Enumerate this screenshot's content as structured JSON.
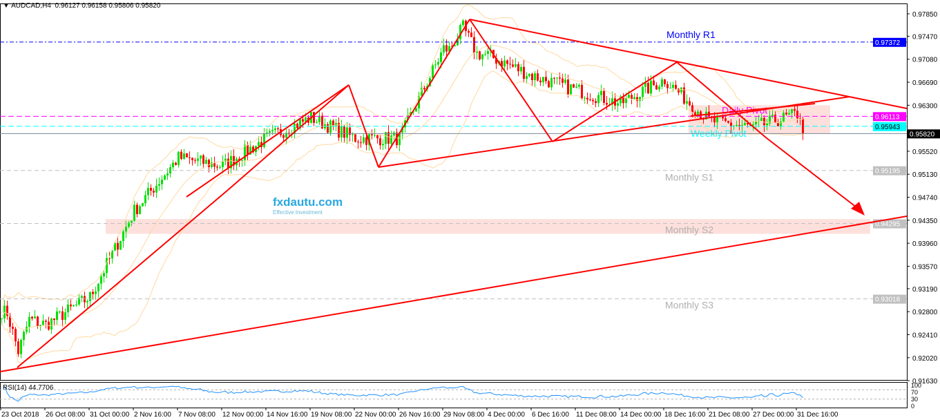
{
  "header": {
    "symbol": "AUDCAD,H4",
    "ohlc": "0.96127 0.96158 0.95806 0.95820"
  },
  "rsi": {
    "label": "RSI(14) 44.7706",
    "levels": [
      70,
      30
    ],
    "axis_labels": [
      "100",
      "70",
      "30",
      "0"
    ]
  },
  "logo": {
    "name": "fxdautu.com",
    "tagline": "Effective Investment"
  },
  "colors": {
    "bull": "#00e000",
    "bear": "#ff0000",
    "trendline": "#ff0000",
    "bands": "#ffd9a0",
    "r1": "#0000ff",
    "daily_pivot": "#ff00ff",
    "weekly_pivot": "#00ffff",
    "support": "#c0c0c0",
    "rsi": "#1e90ff"
  },
  "chart_data": {
    "type": "candlestick",
    "timeframe": "H4",
    "y_ticks": [
      "0.97850",
      "0.97470",
      "0.97080",
      "0.96690",
      "0.96300",
      "0.95520",
      "0.95130",
      "0.94740",
      "0.94350",
      "0.93960",
      "0.93570",
      "0.93190",
      "0.92800",
      "0.92410",
      "0.92020",
      "0.91630"
    ],
    "ylim": [
      0.916,
      0.98
    ],
    "x_ticks": [
      "23 Oct 2018",
      "26 Oct 08:00",
      "31 Oct 00:00",
      "2 Nov 16:00",
      "7 Nov 08:00",
      "12 Nov 00:00",
      "14 Nov 16:00",
      "19 Nov 08:00",
      "22 Nov 00:00",
      "26 Nov 16:00",
      "29 Nov 08:00",
      "4 Dec 00:00",
      "6 Dec 16:00",
      "11 Dec 08:00",
      "14 Dec 00:00",
      "18 Dec 16:00",
      "21 Dec 08:00",
      "27 Dec 00:00",
      "31 Dec 16:00"
    ],
    "approx_close_at_ticks": [
      0.9281,
      0.9258,
      0.9305,
      0.9451,
      0.9541,
      0.9527,
      0.9574,
      0.9609,
      0.9574,
      0.9574,
      0.9726,
      0.9715,
      0.968,
      0.9656,
      0.9633,
      0.9674,
      0.9604,
      0.9592,
      0.9615
    ],
    "last_close": 0.9582,
    "current_price_label": "0.95820",
    "levels": [
      {
        "name": "Monthly R1",
        "price": 0.97372,
        "label": "0.97372"
      },
      {
        "name": "Daily Pivot",
        "price": 0.96113,
        "label": "0.96113"
      },
      {
        "name": "Weekly Pivot",
        "price": 0.95943,
        "label": "0.95943"
      },
      {
        "name": "Monthly S1",
        "price": 0.95195,
        "label": "0.95195"
      },
      {
        "name": "Monthly S2",
        "price": 0.94295,
        "label": "0.94295"
      },
      {
        "name": "Monthly S3",
        "price": 0.93018,
        "label": "0.93018"
      }
    ],
    "indicators": [
      "Bollinger Bands",
      "RSI(14)"
    ]
  }
}
